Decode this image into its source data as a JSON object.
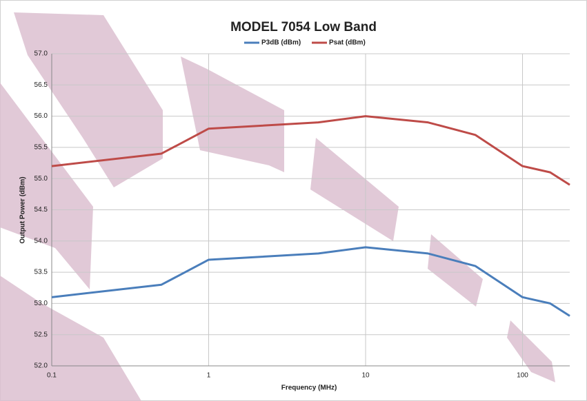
{
  "chart_data": {
    "type": "line",
    "title": "MODEL 7054 Low Band",
    "x_label": "Frequency (MHz)",
    "y_label": "Output Power (dBm)",
    "x": [
      0.1,
      0.5,
      1,
      5,
      10,
      25,
      50,
      100,
      150,
      200
    ],
    "series": [
      {
        "name": "P3dB (dBm)",
        "color": "#4a7ebb",
        "values": [
          53.1,
          53.3,
          53.7,
          53.8,
          53.9,
          53.8,
          53.6,
          53.1,
          53.0,
          52.8
        ]
      },
      {
        "name": "Psat (dBm)",
        "color": "#be4b48",
        "values": [
          55.2,
          55.4,
          55.8,
          55.9,
          56.0,
          55.9,
          55.7,
          55.2,
          55.1,
          54.9
        ]
      }
    ],
    "xlim": [
      0.1,
      200
    ],
    "xticks": [
      0.1,
      1,
      10,
      100
    ],
    "xscale": "log",
    "ylim": [
      52,
      57
    ],
    "yticks": [
      {
        "value": 52,
        "label": "52.0"
      },
      {
        "value": 52.5,
        "label": "52.5"
      },
      {
        "value": 53,
        "label": "53.0"
      },
      {
        "value": 53.5,
        "label": "53.5"
      },
      {
        "value": 54,
        "label": "54.0"
      },
      {
        "value": 54.5,
        "label": "54.5"
      },
      {
        "value": 55,
        "label": "55.0"
      },
      {
        "value": 55.5,
        "label": "55.5"
      },
      {
        "value": 56,
        "label": "56.0"
      },
      {
        "value": 56.5,
        "label": "56.5"
      },
      {
        "value": 57,
        "label": "57.0"
      }
    ],
    "grid": true,
    "legend": "top"
  }
}
